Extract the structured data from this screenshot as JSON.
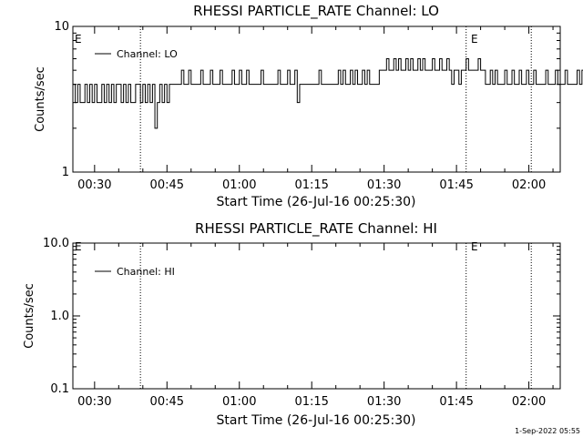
{
  "chart_data": [
    {
      "type": "line",
      "title": "RHESSI PARTICLE_RATE Channel: LO",
      "xlabel": "Start Time (26-Jul-16 00:25:30)",
      "ylabel": "Counts/sec",
      "y_scale": "log",
      "ylim": [
        1,
        10
      ],
      "y_tick_labels": [
        "1",
        "10"
      ],
      "x_tick_labels": [
        "00:30",
        "00:45",
        "01:00",
        "01:15",
        "01:30",
        "01:45",
        "02:00"
      ],
      "xlim": [
        "00:25:30",
        "02:06:30"
      ],
      "legend_position": "top-left",
      "event_marker": "E",
      "vlines": [
        "00:39:30",
        "01:47:00",
        "02:00:30"
      ],
      "series": [
        {
          "name": "Channel: LO",
          "x_start": "00:25:30",
          "step_seconds": 30,
          "values": [
            4,
            3,
            4,
            3,
            3,
            4,
            3,
            4,
            3,
            4,
            3,
            3,
            4,
            3,
            4,
            3,
            4,
            3,
            4,
            4,
            3,
            4,
            3,
            4,
            3,
            3,
            4,
            4,
            3,
            4,
            3,
            4,
            3,
            4,
            2,
            3,
            4,
            3,
            4,
            3,
            4,
            4,
            4,
            4,
            4,
            5,
            4,
            4,
            5,
            4,
            4,
            4,
            4,
            5,
            4,
            4,
            4,
            5,
            4,
            4,
            4,
            5,
            4,
            4,
            4,
            4,
            5,
            4,
            4,
            5,
            4,
            4,
            5,
            4,
            4,
            4,
            4,
            4,
            5,
            4,
            4,
            4,
            4,
            4,
            4,
            5,
            4,
            4,
            4,
            5,
            4,
            4,
            5,
            3,
            4,
            4,
            4,
            4,
            4,
            4,
            4,
            4,
            5,
            4,
            4,
            4,
            4,
            4,
            4,
            4,
            5,
            4,
            5,
            4,
            4,
            5,
            4,
            5,
            4,
            4,
            5,
            4,
            5,
            4,
            4,
            4,
            4,
            5,
            5,
            5,
            6,
            5,
            5,
            6,
            5,
            6,
            5,
            5,
            6,
            5,
            6,
            5,
            5,
            6,
            5,
            6,
            5,
            5,
            5,
            6,
            5,
            5,
            6,
            5,
            5,
            6,
            5,
            4,
            5,
            5,
            4,
            5,
            5,
            6,
            5,
            5,
            5,
            5,
            6,
            5,
            5,
            4,
            4,
            5,
            4,
            5,
            4,
            4,
            4,
            5,
            4,
            4,
            5,
            4,
            4,
            5,
            4,
            4,
            5,
            4,
            4,
            5,
            4,
            4,
            4,
            4,
            5,
            4,
            4,
            4,
            5,
            4,
            4,
            4,
            5,
            4,
            4,
            4,
            4,
            5,
            4,
            5,
            4,
            4,
            5,
            4,
            3,
            4,
            4,
            5,
            3,
            4,
            4,
            3,
            4,
            4,
            3,
            4,
            3,
            4,
            4,
            3,
            4,
            3,
            4,
            3,
            4,
            3,
            4,
            3,
            4,
            4,
            3,
            3,
            4,
            3,
            4,
            3,
            3,
            3,
            4,
            3,
            2,
            3,
            4,
            3,
            3,
            4,
            3,
            3,
            3
          ]
        }
      ]
    },
    {
      "type": "line",
      "title": "RHESSI PARTICLE_RATE Channel: HI",
      "xlabel": "Start Time (26-Jul-16 00:25:30)",
      "ylabel": "Counts/sec",
      "y_scale": "log",
      "ylim": [
        0.1,
        10
      ],
      "y_tick_labels": [
        "0.1",
        "1.0",
        "10.0"
      ],
      "x_tick_labels": [
        "00:30",
        "00:45",
        "01:00",
        "01:15",
        "01:30",
        "01:45",
        "02:00"
      ],
      "xlim": [
        "00:25:30",
        "02:06:30"
      ],
      "legend_position": "top-left",
      "event_marker": "E",
      "vlines": [
        "00:39:30",
        "01:47:00",
        "02:00:30"
      ],
      "series": [
        {
          "name": "Channel: HI",
          "values": []
        }
      ]
    }
  ],
  "footer": {
    "timestamp": "1-Sep-2022 05:55"
  }
}
